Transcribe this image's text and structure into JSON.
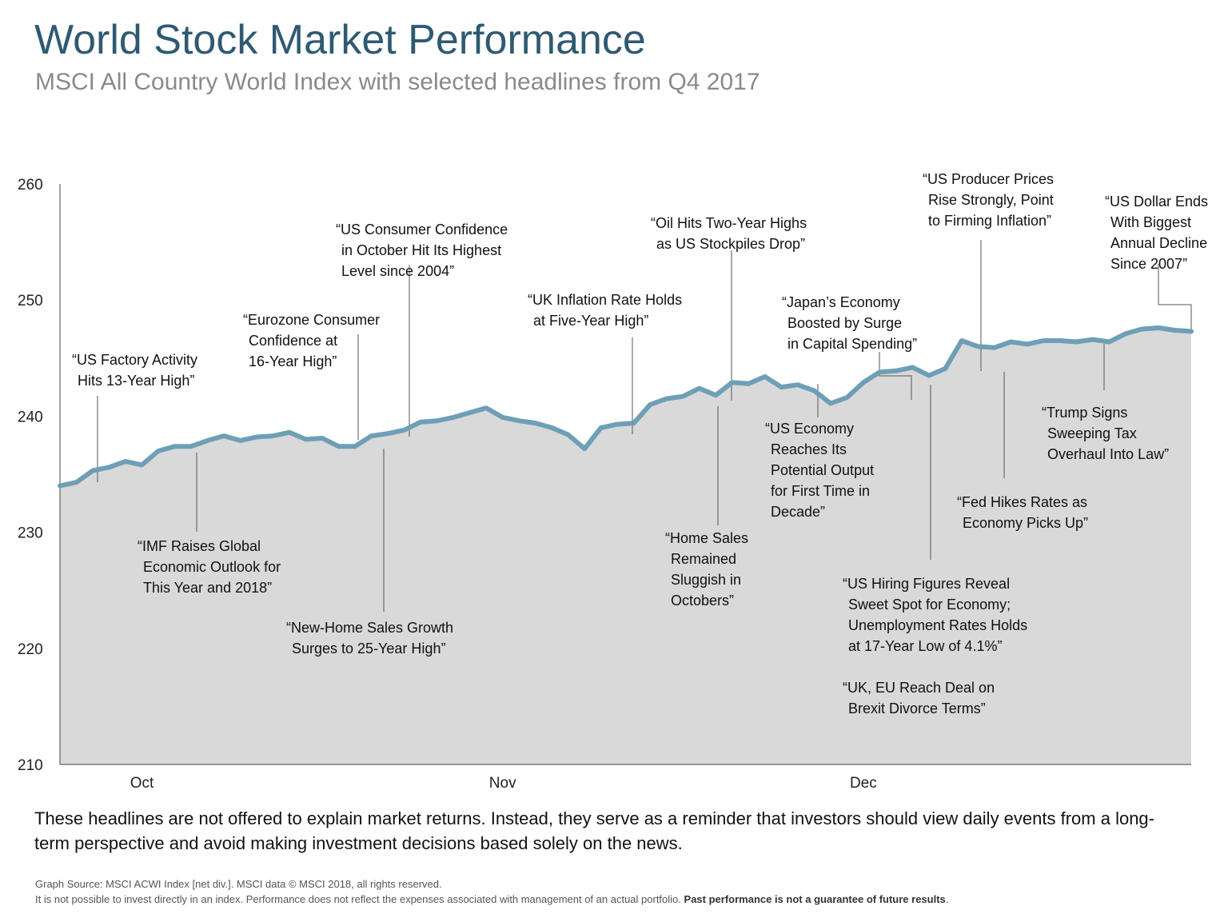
{
  "title": "World Stock Market Performance",
  "subtitle": "MSCI All Country World Index with selected headlines from Q4 2017",
  "note": "These headlines are not offered to explain market returns. Instead, they serve as a reminder that investors should view daily events from a long-term perspective and avoid making investment decisions based solely on the news.",
  "source_line": "Graph Source: MSCI ACWI Index [net div.]. MSCI data © MSCI 2018, all rights reserved.",
  "disclaimer": "It is not possible to invest directly in an index. Performance does not reflect the expenses associated with management of an actual portfolio.",
  "disclaimer_bold": "Past performance is not a guarantee of future results",
  "disclaimer_end": ".",
  "colors": {
    "line": "#6e9fb6",
    "area": "#d9d9d9",
    "title": "#2e5a72"
  },
  "chart_data": {
    "type": "area",
    "title": "World Stock Market Performance",
    "subtitle": "MSCI All Country World Index with selected headlines from Q4 2017",
    "xlabel": "",
    "ylabel": "",
    "ylim": [
      210,
      260
    ],
    "yticks": [
      "260",
      "250",
      "240",
      "230",
      "220",
      "210"
    ],
    "xticks": [
      "Oct",
      "Nov",
      "Dec"
    ],
    "grid": false,
    "x": [
      "2017-09-25",
      "2017-09-26",
      "2017-09-27",
      "2017-09-28",
      "2017-09-29",
      "2017-10-02",
      "2017-10-03",
      "2017-10-04",
      "2017-10-05",
      "2017-10-06",
      "2017-10-09",
      "2017-10-10",
      "2017-10-11",
      "2017-10-12",
      "2017-10-13",
      "2017-10-16",
      "2017-10-17",
      "2017-10-18",
      "2017-10-19",
      "2017-10-20",
      "2017-10-23",
      "2017-10-24",
      "2017-10-25",
      "2017-10-26",
      "2017-10-27",
      "2017-10-30",
      "2017-10-31",
      "2017-11-01",
      "2017-11-02",
      "2017-11-03",
      "2017-11-06",
      "2017-11-07",
      "2017-11-08",
      "2017-11-09",
      "2017-11-10",
      "2017-11-13",
      "2017-11-14",
      "2017-11-15",
      "2017-11-16",
      "2017-11-17",
      "2017-11-20",
      "2017-11-21",
      "2017-11-22",
      "2017-11-23",
      "2017-11-24",
      "2017-11-27",
      "2017-11-28",
      "2017-11-29",
      "2017-11-30",
      "2017-12-01",
      "2017-12-04",
      "2017-12-05",
      "2017-12-06",
      "2017-12-07",
      "2017-12-08",
      "2017-12-11",
      "2017-12-12",
      "2017-12-13",
      "2017-12-14",
      "2017-12-15",
      "2017-12-18",
      "2017-12-19",
      "2017-12-20",
      "2017-12-21",
      "2017-12-22",
      "2017-12-25",
      "2017-12-26",
      "2017-12-27",
      "2017-12-28",
      "2017-12-29"
    ],
    "series": [
      {
        "values": [
          234.0,
          234.3,
          235.3,
          235.6,
          236.1,
          235.8,
          237.0,
          237.4,
          237.4,
          237.9,
          238.3,
          237.9,
          238.2,
          238.3,
          238.6,
          238.0,
          238.1,
          237.4,
          237.4,
          238.3,
          238.5,
          238.8,
          239.5,
          239.6,
          239.9,
          240.3,
          240.7,
          239.9,
          239.6,
          239.4,
          239.0,
          238.4,
          237.2,
          239.0,
          239.3,
          239.4,
          241.0,
          241.5,
          241.7,
          242.4,
          241.8,
          242.9,
          242.8,
          243.4,
          242.5,
          242.7,
          242.2,
          241.1,
          241.6,
          242.9,
          243.8,
          243.9,
          244.2,
          243.5,
          244.1,
          246.5,
          246.0,
          245.9,
          246.4,
          246.2,
          246.5,
          246.5,
          246.4,
          246.6,
          246.4,
          247.1,
          247.5,
          247.6,
          247.4,
          247.3
        ],
        "fill": true
      }
    ],
    "annotations": [
      {
        "lines": [
          "“US Factory Activity",
          "Hits 13-Year High”"
        ],
        "date": "2017-09-27"
      },
      {
        "lines": [
          "“IMF Raises Global",
          "Economic Outlook for",
          "This Year and 2018”"
        ],
        "date": "2017-10-03"
      },
      {
        "lines": [
          "“Eurozone Consumer",
          "Confidence at",
          "16-Year High”"
        ],
        "date": "2017-10-20"
      },
      {
        "lines": [
          "“New-Home Sales Growth",
          "Surges to 25-Year High”"
        ],
        "date": "2017-10-25"
      },
      {
        "lines": [
          "“US Consumer Confidence",
          "in October Hit Its Highest",
          "Level since 2004”"
        ],
        "date": "2017-10-31"
      },
      {
        "lines": [
          "“UK Inflation Rate Holds",
          "at Five-Year High”"
        ],
        "date": "2017-11-14"
      },
      {
        "lines": [
          "“Home Sales",
          "Remained",
          "Sluggish in",
          "Octobers”"
        ],
        "date": "2017-11-21"
      },
      {
        "lines": [
          "“Oil Hits Two-Year Highs",
          "as US Stockpiles Drop”"
        ],
        "date": "2017-11-22"
      },
      {
        "lines": [
          "“US Economy",
          "Reaches Its",
          "Potential Output",
          "for First Time in",
          "Decade”"
        ],
        "date": "2017-11-29"
      },
      {
        "lines": [
          "“Japan’s Economy",
          "Boosted by Surge",
          "in Capital Spending”"
        ],
        "date": "2017-12-08"
      },
      {
        "lines": [
          "“US Hiring Figures Reveal",
          "Sweet Spot for Economy;",
          "Unemployment Rates Holds",
          "at 17-Year Low of 4.1%”"
        ],
        "date": "2017-12-08"
      },
      {
        "lines": [
          "“UK, EU Reach Deal on",
          "Brexit Divorce Terms”"
        ],
        "date": "2017-12-08"
      },
      {
        "lines": [
          "“US Producer Prices",
          "Rise Strongly, Point",
          "to Firming Inflation”"
        ],
        "date": "2017-12-13"
      },
      {
        "lines": [
          "“Fed Hikes Rates as",
          "Economy Picks Up”"
        ],
        "date": "2017-12-13"
      },
      {
        "lines": [
          "“Trump Signs",
          "Sweeping Tax",
          "Overhaul Into Law”"
        ],
        "date": "2017-12-22"
      },
      {
        "lines": [
          "“US Dollar Ends",
          "With Biggest",
          "Annual Decline",
          "Since 2007”"
        ],
        "date": "2017-12-29"
      }
    ]
  }
}
